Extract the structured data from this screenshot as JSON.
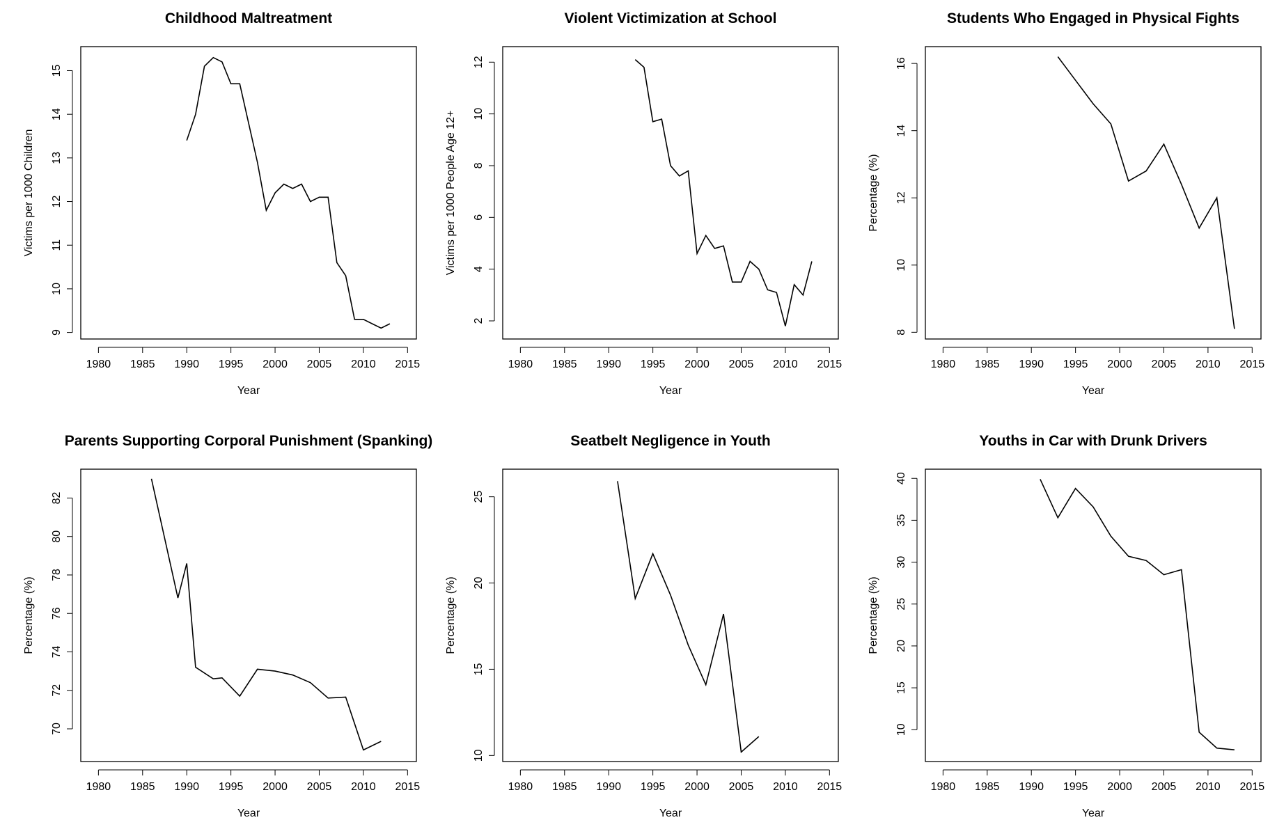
{
  "chart_data": [
    {
      "type": "line",
      "title": "Childhood Maltreatment",
      "xlabel": "Year",
      "ylabel": "Victims per 1000 Children",
      "xlim": [
        1978,
        2016
      ],
      "ylim": [
        8.85,
        15.55
      ],
      "xticks": [
        1980,
        1985,
        1990,
        1995,
        2000,
        2005,
        2010,
        2015
      ],
      "yticks": [
        9,
        10,
        11,
        12,
        13,
        14,
        15
      ],
      "x": [
        1990,
        1991,
        1992,
        1993,
        1994,
        1995,
        1996,
        1997,
        1998,
        1999,
        2000,
        2001,
        2002,
        2003,
        2004,
        2005,
        2006,
        2007,
        2008,
        2009,
        2010,
        2011,
        2012,
        2013
      ],
      "y": [
        13.4,
        14.0,
        15.1,
        15.3,
        15.2,
        14.7,
        14.7,
        13.8,
        12.9,
        11.8,
        12.2,
        12.4,
        12.3,
        12.4,
        12.0,
        12.1,
        12.1,
        10.6,
        10.3,
        9.3,
        9.3,
        9.2,
        9.1,
        9.2
      ],
      "grid": false
    },
    {
      "type": "line",
      "title": "Violent Victimization at School",
      "xlabel": "Year",
      "ylabel": "Victims per 1000 People Age 12+",
      "xlim": [
        1978,
        2016
      ],
      "ylim": [
        1.3,
        12.6
      ],
      "xticks": [
        1980,
        1985,
        1990,
        1995,
        2000,
        2005,
        2010,
        2015
      ],
      "yticks": [
        2,
        4,
        6,
        8,
        10,
        12
      ],
      "x": [
        1993,
        1994,
        1995,
        1996,
        1997,
        1998,
        1999,
        2000,
        2001,
        2002,
        2003,
        2004,
        2005,
        2006,
        2007,
        2008,
        2009,
        2010,
        2011,
        2012,
        2013
      ],
      "y": [
        12.1,
        11.8,
        9.7,
        9.8,
        8.0,
        7.6,
        7.8,
        4.6,
        5.3,
        4.8,
        4.9,
        3.5,
        3.5,
        4.3,
        4.0,
        3.2,
        3.1,
        1.8,
        3.4,
        3.0,
        4.3
      ],
      "grid": false
    },
    {
      "type": "line",
      "title": "Students Who Engaged in Physical Fights",
      "xlabel": "Year",
      "ylabel": "Percentage (%)",
      "xlim": [
        1978,
        2016
      ],
      "ylim": [
        7.8,
        16.5
      ],
      "xticks": [
        1980,
        1985,
        1990,
        1995,
        2000,
        2005,
        2010,
        2015
      ],
      "yticks": [
        8,
        10,
        12,
        14,
        16
      ],
      "x": [
        1993,
        1995,
        1997,
        1999,
        2001,
        2003,
        2005,
        2007,
        2009,
        2011,
        2013
      ],
      "y": [
        16.2,
        15.5,
        14.8,
        14.2,
        12.5,
        12.8,
        13.6,
        12.4,
        11.1,
        12.0,
        8.1
      ],
      "grid": false
    },
    {
      "type": "line",
      "title": "Parents Supporting Corporal Punishment (Spanking)",
      "xlabel": "Year",
      "ylabel": "Percentage (%)",
      "xlim": [
        1978,
        2016
      ],
      "ylim": [
        68.3,
        83.5
      ],
      "xticks": [
        1980,
        1985,
        1990,
        1995,
        2000,
        2005,
        2010,
        2015
      ],
      "yticks": [
        70,
        72,
        74,
        76,
        78,
        80,
        82
      ],
      "x": [
        1986,
        1989,
        1990,
        1991,
        1993,
        1994,
        1996,
        1998,
        2000,
        2002,
        2004,
        2006,
        2008,
        2010,
        2012
      ],
      "y": [
        83.0,
        76.8,
        78.6,
        73.2,
        72.6,
        72.65,
        71.7,
        73.1,
        73.0,
        72.8,
        72.4,
        71.6,
        71.65,
        68.9,
        69.35
      ],
      "grid": false
    },
    {
      "type": "line",
      "title": "Seatbelt Negligence in Youth",
      "xlabel": "Year",
      "ylabel": "Percentage (%)",
      "xlim": [
        1978,
        2016
      ],
      "ylim": [
        9.65,
        26.6
      ],
      "xticks": [
        1980,
        1985,
        1990,
        1995,
        2000,
        2005,
        2010,
        2015
      ],
      "yticks": [
        10,
        15,
        20,
        25
      ],
      "x": [
        1991,
        1993,
        1995,
        1997,
        1999,
        2001,
        2003,
        2005,
        2007
      ],
      "y": [
        25.9,
        19.1,
        21.7,
        19.3,
        16.4,
        14.1,
        18.2,
        10.2,
        11.1
      ],
      "grid": false
    },
    {
      "type": "line",
      "title": "Youths in Car with Drunk Drivers",
      "xlabel": "Year",
      "ylabel": "Percentage (%)",
      "xlim": [
        1978,
        2016
      ],
      "ylim": [
        6.2,
        41.1
      ],
      "xticks": [
        1980,
        1985,
        1990,
        1995,
        2000,
        2005,
        2010,
        2015
      ],
      "yticks": [
        10,
        15,
        20,
        25,
        30,
        35,
        40
      ],
      "x": [
        1991,
        1993,
        1995,
        1997,
        1999,
        2001,
        2003,
        2005,
        2007,
        2009,
        2011,
        2013
      ],
      "y": [
        39.9,
        35.3,
        38.8,
        36.6,
        33.1,
        30.7,
        30.2,
        28.5,
        29.1,
        9.7,
        7.8,
        7.6
      ],
      "grid": false
    }
  ]
}
